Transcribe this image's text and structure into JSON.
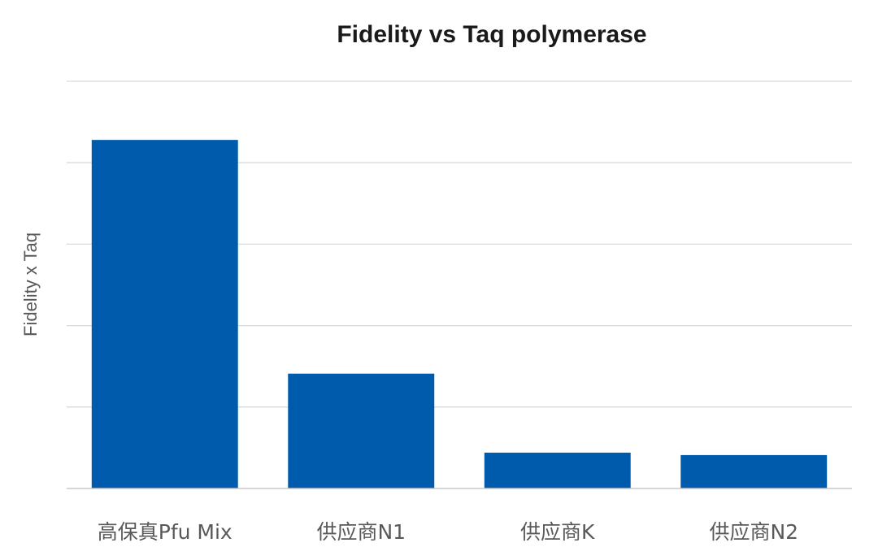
{
  "chart_data": {
    "type": "bar",
    "title": "Fidelity vs Taq polymerase",
    "xlabel": "",
    "ylabel": "Fidelity x Taq",
    "categories": [
      "高保真Pfu Mix",
      "供应商N1",
      "供应商K",
      "供应商N2"
    ],
    "values": [
      4.28,
      1.41,
      0.44,
      0.41
    ],
    "ylim": [
      0,
      5
    ],
    "yticks": [
      0,
      1,
      2,
      3,
      4,
      5
    ],
    "ytick_labels_shown": false,
    "grid": true,
    "legend": "none",
    "bar_color": "#005BAC",
    "grid_color": "#d9d9d9"
  }
}
